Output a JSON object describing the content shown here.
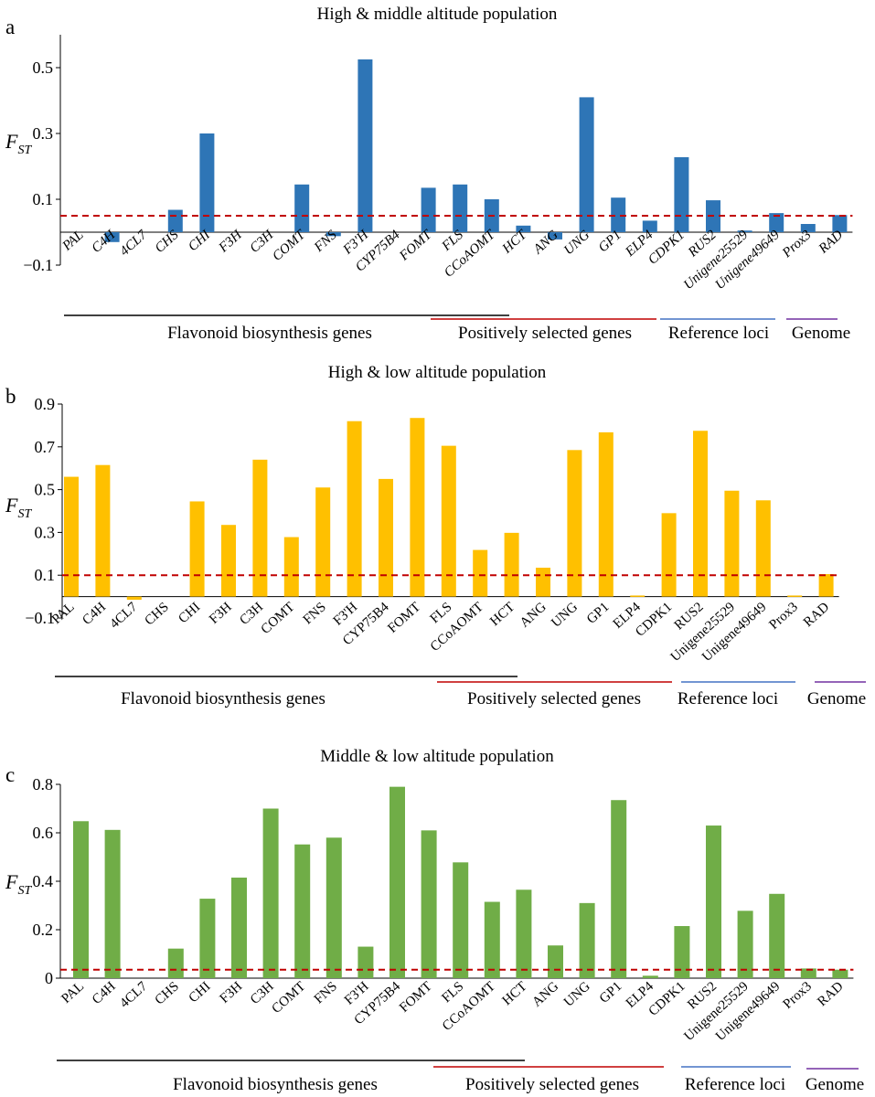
{
  "chart_data": [
    {
      "type": "bar",
      "panel": "a",
      "title": "High & middle altitude population",
      "ylabel": "FST",
      "ylabel_main": "F",
      "ylabel_sub": "ST",
      "xlabel": "",
      "ylim": [
        -0.1,
        0.6
      ],
      "yticks": [
        -0.1,
        0.1,
        0.3,
        0.5
      ],
      "ytick_labels": [
        "−0.1",
        "0.1",
        "0.3",
        "0.5"
      ],
      "italic_labels": true,
      "bar_color": "#2e75b6",
      "threshold": 0.05,
      "threshold_color": "#c00000",
      "categories": [
        "PAL",
        "C4H",
        "4CL7",
        "CHS",
        "CHI",
        "F3H",
        "C3H",
        "COMT",
        "FNS",
        "F3'H",
        "CYP75B4",
        "FOMT",
        "FLS",
        "CCoAOMT",
        "HCT",
        "ANG",
        "UNG",
        "GP1",
        "ELP4",
        "CDPK1",
        "RUS2",
        "Unigene25529",
        "Unigene49649",
        "Prox3",
        "RAD"
      ],
      "values": [
        0,
        -0.03,
        0,
        0.068,
        0.3,
        0,
        0,
        0.145,
        -0.012,
        0.525,
        0,
        0.135,
        0.145,
        0.1,
        0.02,
        -0.022,
        0.41,
        0.105,
        0.035,
        0.228,
        0.097,
        0.005,
        0.058,
        0.025,
        0.052
      ],
      "groups": [
        {
          "label": "Flavonoid biosynthesis genes",
          "color": "#000000"
        },
        {
          "label": "Positively selected genes",
          "color": "#c00000"
        },
        {
          "label": "Reference loci",
          "color": "#4472c4"
        },
        {
          "label": "Genome",
          "color": "#7030a0"
        }
      ]
    },
    {
      "type": "bar",
      "panel": "b",
      "title": "High & low altitude population",
      "ylabel": "FST",
      "ylabel_main": "F",
      "ylabel_sub": "ST",
      "xlabel": "",
      "ylim": [
        -0.1,
        0.9
      ],
      "yticks": [
        -0.1,
        0.1,
        0.3,
        0.5,
        0.7,
        0.9
      ],
      "ytick_labels": [
        "−0.1",
        "0.1",
        "0.3",
        "0.5",
        "0.7",
        "0.9"
      ],
      "italic_labels": false,
      "bar_color": "#ffc000",
      "threshold": 0.1,
      "threshold_color": "#c00000",
      "categories": [
        "PAL",
        "C4H",
        "4CL7",
        "CHS",
        "CHI",
        "F3H",
        "C3H",
        "COMT",
        "FNS",
        "F3'H",
        "CYP75B4",
        "FOMT",
        "FLS",
        "CCoAOMT",
        "HCT",
        "ANG",
        "UNG",
        "GP1",
        "ELP4",
        "CDPK1",
        "RUS2",
        "Unigene25529",
        "Unigene49649",
        "Prox3",
        "RAD"
      ],
      "values": [
        0.56,
        0.615,
        -0.015,
        0,
        0.445,
        0.335,
        0.64,
        0.278,
        0.51,
        0.82,
        0.55,
        0.835,
        0.705,
        0.218,
        0.298,
        0.135,
        0.685,
        0.768,
        0.005,
        0.39,
        0.775,
        0.495,
        0.45,
        0.005,
        0.105
      ],
      "groups": [
        {
          "label": "Flavonoid biosynthesis genes",
          "color": "#000000"
        },
        {
          "label": "Positively selected genes",
          "color": "#c00000"
        },
        {
          "label": "Reference loci",
          "color": "#4472c4"
        },
        {
          "label": "Genome",
          "color": "#7030a0"
        }
      ]
    },
    {
      "type": "bar",
      "panel": "c",
      "title": "Middle & low altitude population",
      "ylabel": "FST",
      "ylabel_main": "F",
      "ylabel_sub": "ST",
      "xlabel": "",
      "ylim": [
        0,
        0.8
      ],
      "yticks": [
        0,
        0.2,
        0.4,
        0.6,
        0.8
      ],
      "ytick_labels": [
        "0",
        "0.2",
        "0.4",
        "0.6",
        "0.8"
      ],
      "italic_labels": false,
      "bar_color": "#70ad47",
      "threshold": 0.035,
      "threshold_color": "#c00000",
      "categories": [
        "PAL",
        "C4H",
        "4CL7",
        "CHS",
        "CHI",
        "F3H",
        "C3H",
        "COMT",
        "FNS",
        "F3'H",
        "CYP75B4",
        "FOMT",
        "FLS",
        "CCoAOMT",
        "HCT",
        "ANG",
        "UNG",
        "GP1",
        "ELP4",
        "CDPK1",
        "RUS2",
        "Unigene25529",
        "Unigene49649",
        "Prox3",
        "RAD"
      ],
      "values": [
        0.648,
        0.612,
        0,
        0.122,
        0.328,
        0.415,
        0.7,
        0.552,
        0.58,
        0.13,
        0.79,
        0.61,
        0.478,
        0.315,
        0.365,
        0.135,
        0.31,
        0.735,
        0.01,
        0.215,
        0.63,
        0.278,
        0.348,
        0.04,
        0.035
      ],
      "groups": [
        {
          "label": "Flavonoid biosynthesis genes",
          "color": "#000000"
        },
        {
          "label": "Positively selected genes",
          "color": "#c00000"
        },
        {
          "label": "Reference loci",
          "color": "#4472c4"
        },
        {
          "label": "Genome",
          "color": "#7030a0"
        }
      ]
    }
  ]
}
